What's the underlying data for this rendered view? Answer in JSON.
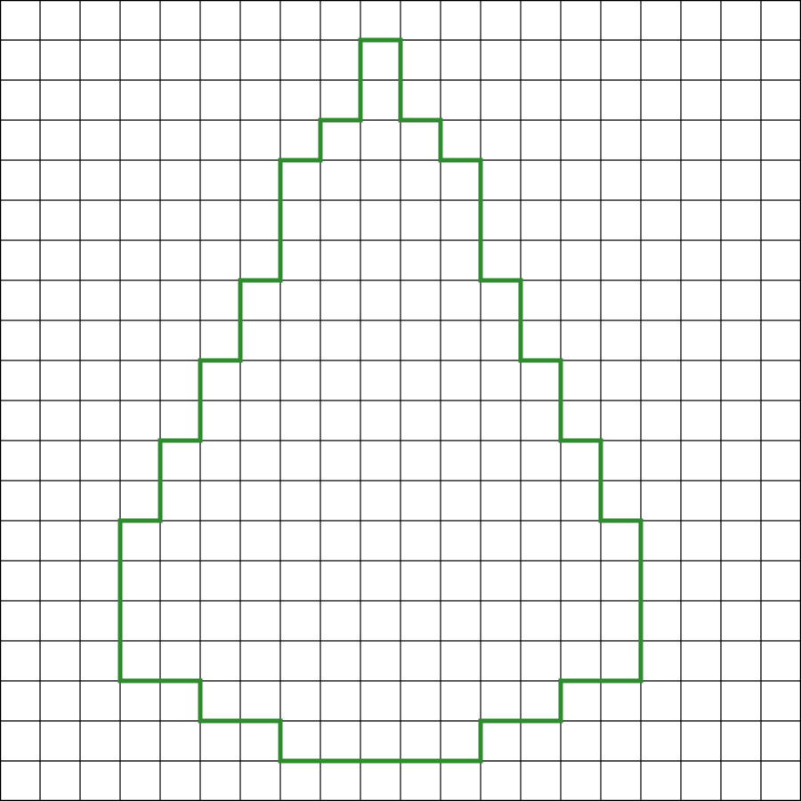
{
  "grid": {
    "columns": 20,
    "rows": 20,
    "line_color": "#000000",
    "background_color": "#ffffff"
  },
  "shape": {
    "stroke_color": "#2e8b2e",
    "vertices": [
      [
        9,
        1
      ],
      [
        10,
        1
      ],
      [
        10,
        3
      ],
      [
        11,
        3
      ],
      [
        11,
        4
      ],
      [
        12,
        4
      ],
      [
        12,
        7
      ],
      [
        13,
        7
      ],
      [
        13,
        9
      ],
      [
        14,
        9
      ],
      [
        14,
        11
      ],
      [
        15,
        11
      ],
      [
        15,
        13
      ],
      [
        16,
        13
      ],
      [
        16,
        17
      ],
      [
        14,
        17
      ],
      [
        14,
        18
      ],
      [
        12,
        18
      ],
      [
        12,
        19
      ],
      [
        7,
        19
      ],
      [
        7,
        18
      ],
      [
        5,
        18
      ],
      [
        5,
        17
      ],
      [
        3,
        17
      ],
      [
        3,
        13
      ],
      [
        4,
        13
      ],
      [
        4,
        11
      ],
      [
        5,
        11
      ],
      [
        5,
        9
      ],
      [
        6,
        9
      ],
      [
        6,
        7
      ],
      [
        7,
        7
      ],
      [
        7,
        4
      ],
      [
        8,
        4
      ],
      [
        8,
        3
      ],
      [
        9,
        3
      ]
    ]
  }
}
